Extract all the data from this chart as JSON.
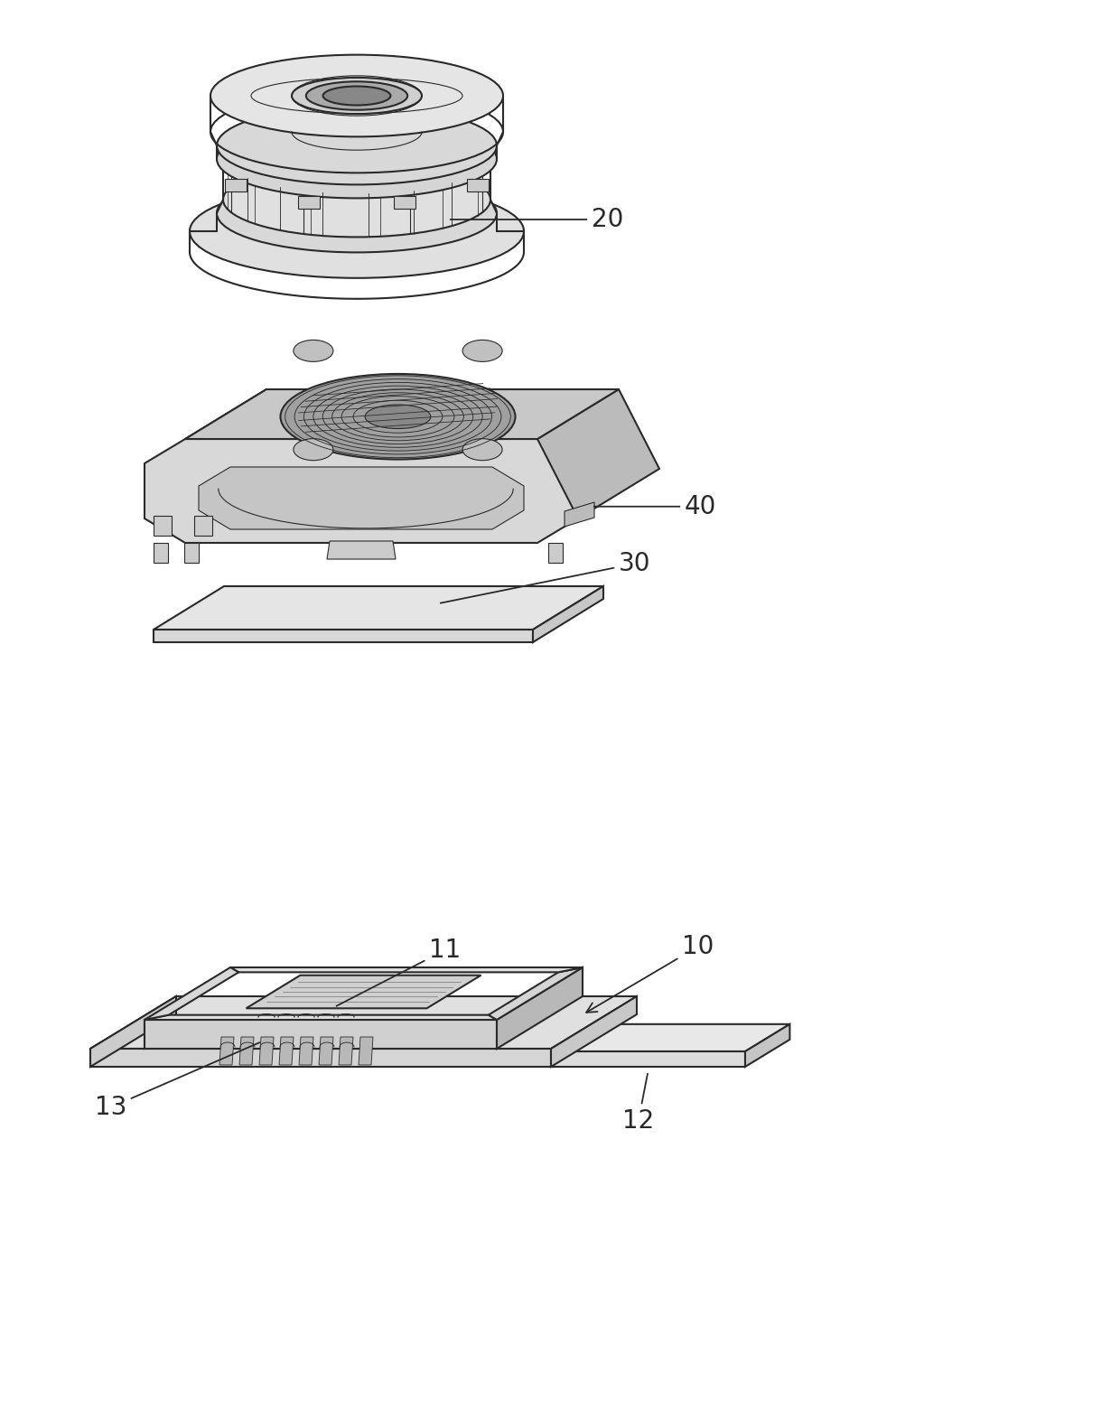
{
  "background_color": "#ffffff",
  "line_color": "#2a2a2a",
  "label_20": "20",
  "label_40": "40",
  "label_30": "30",
  "label_10": "10",
  "label_11": "11",
  "label_12": "12",
  "label_13": "13",
  "label_fontsize": 20,
  "fig_width": 12.4,
  "fig_height": 15.61,
  "dpi": 100
}
